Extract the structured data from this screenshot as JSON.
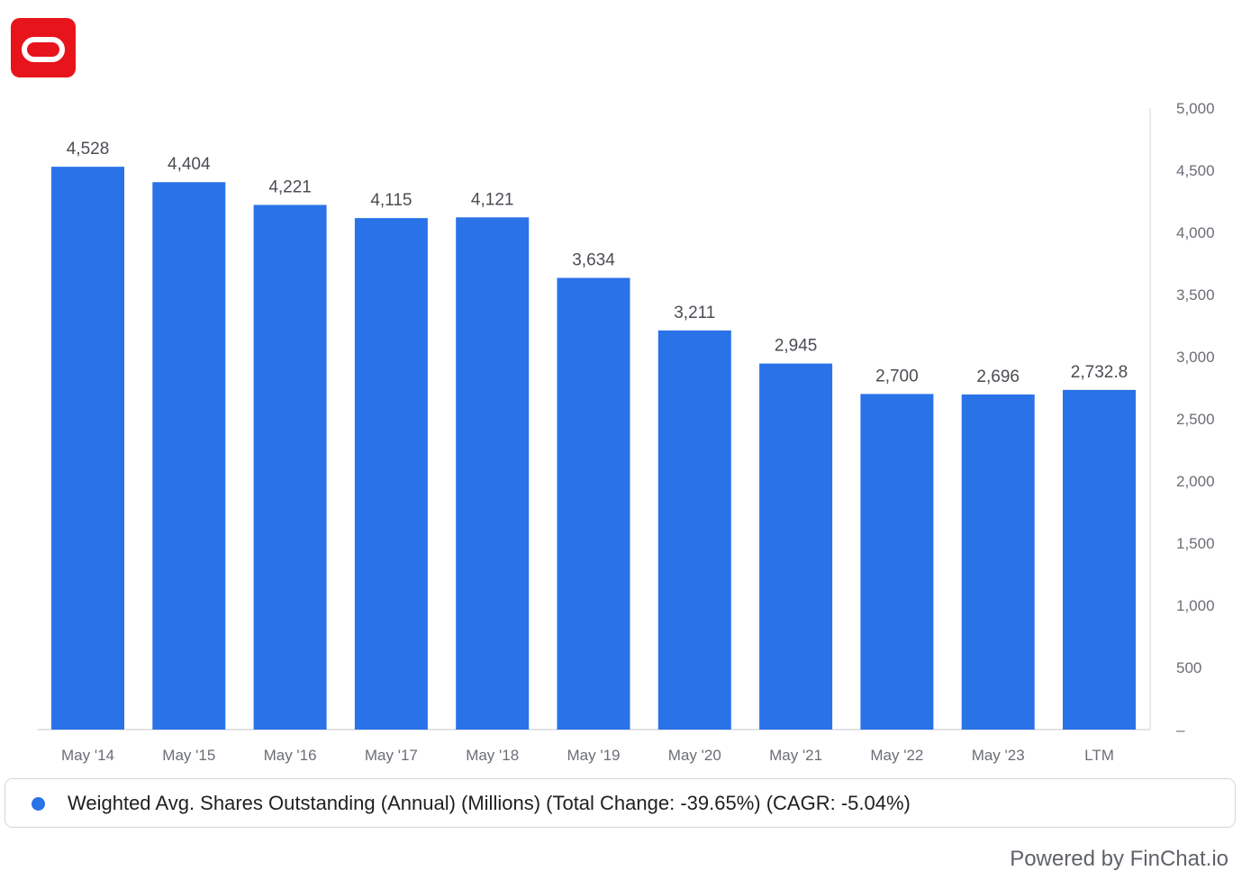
{
  "chart_data": {
    "type": "bar",
    "categories": [
      "May '14",
      "May '15",
      "May '16",
      "May '17",
      "May '18",
      "May '19",
      "May '20",
      "May '21",
      "May '22",
      "May '23",
      "LTM"
    ],
    "values": [
      4528,
      4404,
      4221,
      4115,
      4121,
      3634,
      3211,
      2945,
      2700,
      2696,
      2732.8
    ],
    "data_labels": [
      "4,528",
      "4,404",
      "4,221",
      "4,115",
      "4,121",
      "3,634",
      "3,211",
      "2,945",
      "2,700",
      "2,696",
      "2,732.8"
    ],
    "ylim": [
      0,
      5000
    ],
    "yticks": [
      0,
      500,
      1000,
      1500,
      2000,
      2500,
      3000,
      3500,
      4000,
      4500,
      5000
    ],
    "ytick_labels": [
      "–",
      "500",
      "1,000",
      "1,500",
      "2,000",
      "2,500",
      "3,000",
      "3,500",
      "4,000",
      "4,500",
      "5,000"
    ],
    "y_axis_side": "right",
    "grid": false,
    "legend_position": "bottom",
    "series": [
      {
        "name": "Weighted Avg. Shares Outstanding (Annual) (Millions) (Total Change: -39.65%) (CAGR: -5.04%)",
        "color": "#2a72e8"
      }
    ]
  },
  "logo": {
    "icon": "oracle-logo-icon",
    "color": "#e8141b"
  },
  "legend": {
    "dot_color": "#2a72e8",
    "label": "Weighted Avg. Shares Outstanding (Annual) (Millions) (Total Change: -39.65%) (CAGR: -5.04%)"
  },
  "footer": {
    "powered_by": "Powered by FinChat.io"
  }
}
